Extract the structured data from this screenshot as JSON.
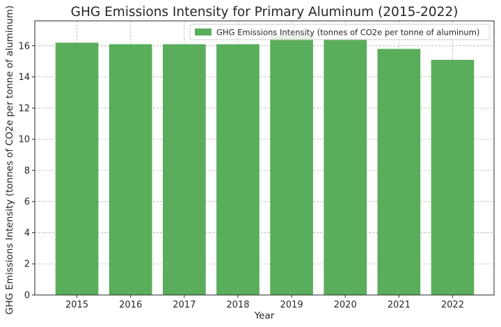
{
  "chart_data": {
    "type": "bar",
    "title": "GHG Emissions Intensity for Primary Aluminum (2015-2022)",
    "xlabel": "Year",
    "ylabel": "GHG Emissions Intensity (tonnes of CO2e per tonne of aluminum)",
    "categories": [
      "2015",
      "2016",
      "2017",
      "2018",
      "2019",
      "2020",
      "2021",
      "2022"
    ],
    "series": [
      {
        "name": "GHG Emissions Intensity (tonnes of CO2e per tonne of aluminum)",
        "values": [
          16.2,
          16.1,
          16.1,
          16.1,
          16.7,
          16.4,
          15.8,
          15.1
        ],
        "color": "#5aad5a"
      }
    ],
    "yticks": [
      0,
      2,
      4,
      6,
      8,
      10,
      12,
      14,
      16
    ],
    "ylim": [
      0,
      17.6
    ],
    "grid": true,
    "legend_position": "top-right"
  }
}
